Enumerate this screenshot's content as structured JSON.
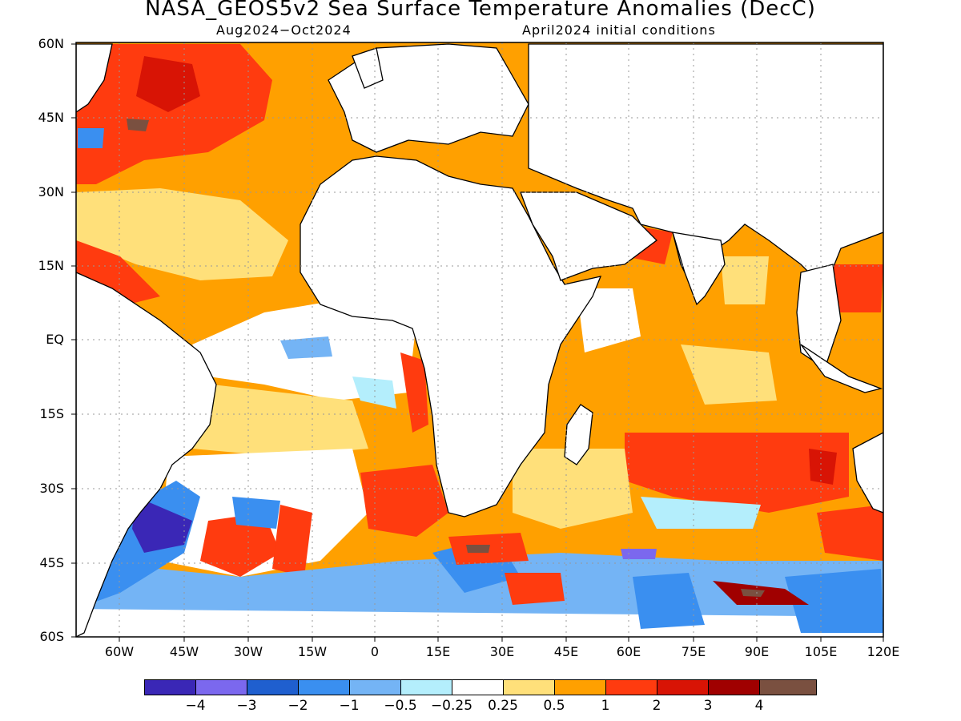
{
  "title": "NASA_GEOS5v2 Sea Surface Temperature Anomalies (DecC)",
  "subtitle_left": "Aug2024−Oct2024",
  "subtitle_right": "April2024 initial conditions",
  "lat_labels": [
    "60N",
    "45N",
    "30N",
    "15N",
    "EQ",
    "15S",
    "30S",
    "45S",
    "60S"
  ],
  "lon_labels": [
    "60W",
    "45W",
    "30W",
    "15W",
    "0",
    "15E",
    "30E",
    "45E",
    "60E",
    "75E",
    "90E",
    "105E",
    "120E"
  ],
  "colorbar": {
    "colors": [
      "#3a27b6",
      "#7b68ee",
      "#1f5fcf",
      "#3a8ff0",
      "#74b4f5",
      "#b4eefc",
      "#ffffff",
      "#ffe07a",
      "#ffa000",
      "#ff3b0f",
      "#d81405",
      "#a00000",
      "#7a5040"
    ],
    "labels": [
      "−4",
      "−3",
      "−2",
      "−1",
      "−0.5",
      "−0.25",
      "0.25",
      "0.5",
      "1",
      "2",
      "3",
      "4"
    ]
  },
  "map_colors": {
    "land": "#ffffff",
    "coast": "#000000",
    "grid": "#999999"
  }
}
